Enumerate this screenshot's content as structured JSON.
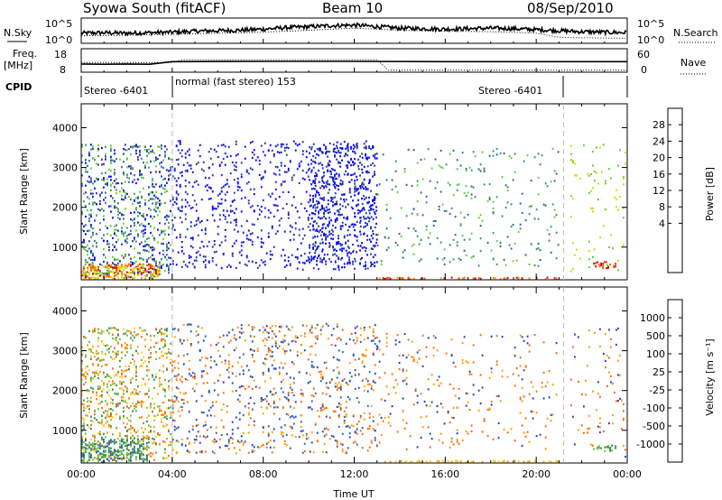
{
  "header": {
    "station": "Syowa South (fitACF)",
    "beam": "Beam 10",
    "date": "08/Sep/2010"
  },
  "noise_panel": {
    "left_label": "N.Sky",
    "right_label": "N.Search",
    "left_ticks": [
      "10^5",
      "10^0"
    ],
    "right_ticks": [
      "10^5",
      "10^0"
    ]
  },
  "freq_panel": {
    "left_label_1": "Freq.",
    "left_label_2": "[MHz]",
    "right_label": "Nave",
    "left_ticks": [
      "18",
      "8"
    ],
    "right_ticks": [
      "60",
      "0"
    ]
  },
  "cpid": {
    "label": "CPID",
    "segments": [
      {
        "name": "Stereo -6401",
        "start_h": 0.0,
        "end_h": 4.0
      },
      {
        "name": "normal (fast stereo) 153",
        "start_h": 4.0,
        "end_h": 21.2
      },
      {
        "name": "Stereo -6401",
        "start_h": 21.2,
        "end_h": 24.0
      }
    ]
  },
  "power_colorbar": {
    "label": "Power [dB]",
    "ticks": [
      "28",
      "24",
      "20",
      "16",
      "12",
      "8",
      "4"
    ],
    "colors": [
      "#dd0000",
      "#ff5500",
      "#ff9900",
      "#ffcc00",
      "#ccdd00",
      "#66cc33",
      "#339966",
      "#336699",
      "#2233aa",
      "#0000ff"
    ]
  },
  "velocity_colorbar": {
    "label": "Velocity [m s⁻¹]",
    "ticks": [
      "1000",
      "500",
      "100",
      "25",
      "-25",
      "-100",
      "-500",
      "-1000"
    ],
    "colors": [
      "#1f3fbf",
      "#2b5fa8",
      "#338a55",
      "#66c133",
      "#bbbbbb",
      "#ffcc22",
      "#ff9900",
      "#ff6600",
      "#ee1111"
    ]
  },
  "chart_data": [
    {
      "type": "line",
      "panel": "noise",
      "series": [
        {
          "name": "N.Sky",
          "style": "solid",
          "x": [
            0,
            1,
            2,
            3,
            4,
            5,
            6,
            7,
            8,
            9,
            10,
            11,
            12,
            13,
            14,
            15,
            16,
            17,
            18,
            19,
            20,
            21,
            22,
            23,
            24
          ],
          "y": [
            2.0,
            2.1,
            2.0,
            2.1,
            2.2,
            2.4,
            2.5,
            2.6,
            2.8,
            3.1,
            3.3,
            3.5,
            3.6,
            3.3,
            3.0,
            2.9,
            2.8,
            2.9,
            3.0,
            2.9,
            2.7,
            2.5,
            2.3,
            2.2,
            2.1
          ]
        },
        {
          "name": "N.Search",
          "style": "dotted",
          "x": [
            0,
            2,
            4,
            6,
            8,
            10,
            12,
            14,
            16,
            18,
            20,
            21,
            22,
            24
          ],
          "y": [
            1.5,
            1.6,
            1.8,
            2.0,
            2.2,
            2.6,
            3.0,
            2.6,
            2.4,
            2.3,
            2.0,
            1.2,
            1.1,
            1.0
          ]
        }
      ],
      "ylim": [
        0,
        5
      ],
      "xlim": [
        0,
        24
      ]
    },
    {
      "type": "line",
      "panel": "frequency",
      "series": [
        {
          "name": "Freq.",
          "style": "solid",
          "x": [
            0,
            1,
            2,
            3,
            4,
            8,
            12,
            16,
            20,
            24
          ],
          "y": [
            11.5,
            11.4,
            11.5,
            11.4,
            12.5,
            12.6,
            12.6,
            12.5,
            12.5,
            12.5
          ]
        },
        {
          "name": "Nave",
          "style": "dotted",
          "x": [
            0,
            4,
            4.5,
            13,
            13.5,
            21,
            24
          ],
          "y": [
            25,
            25,
            32,
            32,
            5,
            5,
            5
          ]
        }
      ],
      "ylim_freq": [
        8,
        18
      ],
      "ylim_nave": [
        0,
        60
      ]
    },
    {
      "type": "heatmap",
      "panel": "power",
      "xlabel": "",
      "ylabel": "Slant Range [km]",
      "xlim": [
        0,
        24
      ],
      "ylim": [
        180,
        4600
      ],
      "yticks": [
        1000,
        2000,
        3000,
        4000
      ],
      "regions": [
        {
          "x": [
            0,
            4
          ],
          "y": [
            200,
            3600
          ],
          "density": 0.3,
          "levels": [
            5,
            6,
            7,
            8,
            9
          ]
        },
        {
          "x": [
            0,
            3.5
          ],
          "y": [
            180,
            600
          ],
          "density": 0.8,
          "levels": [
            0,
            1,
            2,
            3,
            4
          ]
        },
        {
          "x": [
            4,
            13
          ],
          "y": [
            400,
            3700
          ],
          "density": 0.15,
          "levels": [
            8,
            9
          ]
        },
        {
          "x": [
            10,
            13
          ],
          "y": [
            400,
            3600
          ],
          "density": 0.25,
          "levels": [
            9,
            8
          ]
        },
        {
          "x": [
            13,
            21
          ],
          "y": [
            500,
            3500
          ],
          "density": 0.06,
          "levels": [
            5,
            6,
            7
          ]
        },
        {
          "x": [
            13,
            21
          ],
          "y": [
            180,
            260
          ],
          "density": 0.5,
          "levels": [
            0,
            1,
            2
          ]
        },
        {
          "x": [
            21.5,
            24
          ],
          "y": [
            300,
            3600
          ],
          "density": 0.05,
          "levels": [
            4,
            5
          ]
        },
        {
          "x": [
            22.5,
            23.5
          ],
          "y": [
            450,
            650
          ],
          "density": 0.6,
          "levels": [
            0,
            1
          ]
        }
      ]
    },
    {
      "type": "heatmap",
      "panel": "velocity",
      "xlabel": "Time UT",
      "ylabel": "Slant Range [km]",
      "xlim": [
        0,
        24
      ],
      "ylim": [
        180,
        4600
      ],
      "xticks": [
        "00:00",
        "04:00",
        "08:00",
        "12:00",
        "16:00",
        "20:00",
        "00:00"
      ],
      "yticks": [
        1000,
        2000,
        3000,
        4000
      ],
      "regions": [
        {
          "x": [
            0,
            4
          ],
          "y": [
            200,
            3600
          ],
          "density": 0.3,
          "levels": [
            5,
            6,
            7,
            2,
            3
          ]
        },
        {
          "x": [
            0,
            3.0
          ],
          "y": [
            180,
            800
          ],
          "density": 0.7,
          "levels": [
            2,
            3,
            1
          ]
        },
        {
          "x": [
            4,
            13
          ],
          "y": [
            400,
            3700
          ],
          "density": 0.15,
          "levels": [
            6,
            7,
            0,
            1
          ]
        },
        {
          "x": [
            13,
            21
          ],
          "y": [
            500,
            3500
          ],
          "density": 0.06,
          "levels": [
            6,
            7,
            0
          ]
        },
        {
          "x": [
            13,
            21
          ],
          "y": [
            180,
            260
          ],
          "density": 0.5,
          "levels": [
            5,
            6
          ]
        },
        {
          "x": [
            21.5,
            24
          ],
          "y": [
            300,
            3600
          ],
          "density": 0.05,
          "levels": [
            6,
            7,
            0
          ]
        },
        {
          "x": [
            22.5,
            23.5
          ],
          "y": [
            450,
            650
          ],
          "density": 0.6,
          "levels": [
            2,
            3
          ]
        }
      ]
    }
  ]
}
